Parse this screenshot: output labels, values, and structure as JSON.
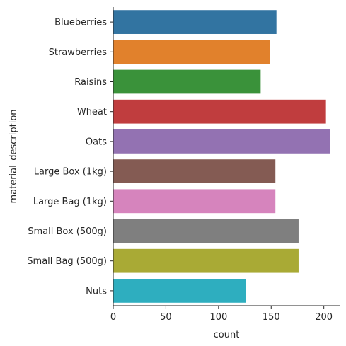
{
  "chart_data": {
    "type": "bar",
    "orientation": "horizontal",
    "categories": [
      "Blueberries",
      "Strawberries",
      "Raisins",
      "Wheat",
      "Oats",
      "Large Box (1kg)",
      "Large Bag (1kg)",
      "Small Box (500g)",
      "Small Bag (500g)",
      "Nuts"
    ],
    "values": [
      155,
      149,
      140,
      202,
      206,
      154,
      154,
      176,
      176,
      126
    ],
    "colors": [
      "#3274a1",
      "#e1812c",
      "#3a923a",
      "#c03d3e",
      "#9372b2",
      "#845b53",
      "#d684bd",
      "#7f7f7f",
      "#a9aa35",
      "#2eaebf"
    ],
    "xlabel": "count",
    "ylabel": "material_description",
    "xlim": [
      0,
      215
    ],
    "xticks": [
      0,
      50,
      100,
      150,
      200
    ],
    "grid": false,
    "legend": "none"
  }
}
